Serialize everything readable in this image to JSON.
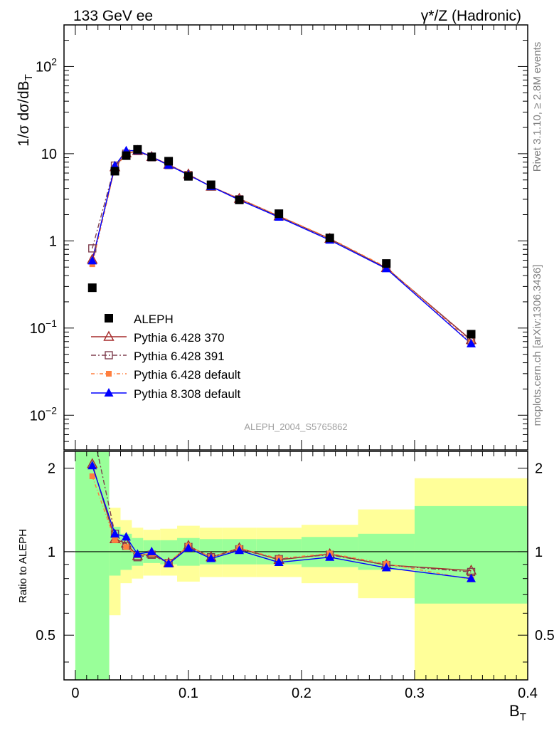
{
  "header": {
    "left": "133 GeV ee",
    "right": "γ*/Z (Hadronic)"
  },
  "side": {
    "rivet": "Rivet 3.1.10, ≥ 2.8M events",
    "mcplots": "mcplots.cern.ch [arXiv:1306.3436]"
  },
  "watermark": "ALEPH_2004_S5765862",
  "axes": {
    "xlabel": "B",
    "xlabel_sub": "T",
    "ylabel_main": "1/σ  dσ/dB",
    "ylabel_main_sub": "T",
    "ylabel_ratio": "Ratio to ALEPH"
  },
  "chart_data": [
    {
      "type": "scatter",
      "panel": "main",
      "yscale": "log",
      "xlim": [
        -0.01,
        0.4
      ],
      "ylim": [
        0.004,
        300
      ],
      "yticks": [
        {
          "v": 0.01,
          "base": "10",
          "exp": "−2"
        },
        {
          "v": 0.1,
          "base": "10",
          "exp": "−1"
        },
        {
          "v": 1,
          "base": "1",
          "exp": ""
        },
        {
          "v": 10,
          "base": "10",
          "exp": ""
        },
        {
          "v": 100,
          "base": "10",
          "exp": "2"
        }
      ],
      "legend_position": "bottom-left",
      "series": [
        {
          "name": "ALEPH",
          "style": "data",
          "color": "#000000",
          "x": [
            0.015,
            0.035,
            0.045,
            0.055,
            0.0675,
            0.0825,
            0.1,
            0.12,
            0.145,
            0.18,
            0.225,
            0.275,
            0.35
          ],
          "y": [
            0.29,
            6.3,
            9.5,
            11.2,
            9.2,
            8.2,
            5.5,
            4.4,
            2.95,
            2.05,
            1.08,
            0.55,
            0.085
          ]
        },
        {
          "name": "Pythia 6.428 370",
          "style": "open-triangle",
          "color": "#a52a2a",
          "dash": "",
          "x": [
            0.015,
            0.035,
            0.045,
            0.055,
            0.0675,
            0.0825,
            0.1,
            0.12,
            0.145,
            0.18,
            0.225,
            0.275,
            0.35
          ],
          "y": [
            0.61,
            7.0,
            10.1,
            10.8,
            9.2,
            7.5,
            5.8,
            4.2,
            3.05,
            1.92,
            1.06,
            0.49,
            0.073
          ]
        },
        {
          "name": "Pythia 6.428 391",
          "style": "open-square",
          "color": "#804050",
          "dash": "7,3,2,3",
          "x": [
            0.015,
            0.035,
            0.045,
            0.055,
            0.0675,
            0.0825,
            0.1,
            0.12,
            0.145,
            0.18,
            0.225,
            0.275,
            0.35
          ],
          "y": [
            0.82,
            7.3,
            10.0,
            10.7,
            9.1,
            7.4,
            5.7,
            4.2,
            3.0,
            1.92,
            1.05,
            0.49,
            0.072
          ]
        },
        {
          "name": "Pythia 6.428 default",
          "style": "filled-square-small",
          "color": "#ff7f3f",
          "dash": "5,3,1,3",
          "x": [
            0.015,
            0.035,
            0.045,
            0.055,
            0.0675,
            0.0825,
            0.1,
            0.12,
            0.145,
            0.18,
            0.225,
            0.275,
            0.35
          ],
          "y": [
            0.54,
            6.9,
            9.8,
            10.9,
            9.3,
            7.5,
            5.8,
            4.2,
            3.05,
            1.94,
            1.07,
            0.5,
            0.068
          ]
        },
        {
          "name": "Pythia 8.308 default",
          "style": "filled-triangle",
          "color": "#0000ff",
          "dash": "",
          "x": [
            0.015,
            0.035,
            0.045,
            0.055,
            0.0675,
            0.0825,
            0.1,
            0.12,
            0.145,
            0.18,
            0.225,
            0.275,
            0.35
          ],
          "y": [
            0.59,
            7.3,
            10.8,
            10.9,
            9.2,
            7.4,
            5.7,
            4.2,
            2.95,
            1.87,
            1.02,
            0.48,
            0.066
          ]
        }
      ]
    },
    {
      "type": "line",
      "panel": "ratio",
      "yscale": "log",
      "xlim": [
        -0.01,
        0.4
      ],
      "ylim": [
        0.345,
        2.3
      ],
      "xticks": [
        0,
        0.1,
        0.2,
        0.3,
        0.4
      ],
      "xticklabels": [
        "0",
        "0.1",
        "0.2",
        "0.3",
        "0.4"
      ],
      "yticks": [
        0.5,
        1,
        2
      ],
      "yticklabels": [
        "0.5",
        "1",
        "2"
      ],
      "bands": [
        {
          "x0": 0.0,
          "x1": 0.03,
          "yellow": [
            0.2,
            5.0
          ],
          "green": [
            0.2,
            5.0
          ]
        },
        {
          "x0": 0.03,
          "x1": 0.04,
          "yellow": [
            0.59,
            1.44
          ],
          "green": [
            0.82,
            1.23
          ]
        },
        {
          "x0": 0.04,
          "x1": 0.05,
          "yellow": [
            0.77,
            1.3
          ],
          "green": [
            0.86,
            1.16
          ]
        },
        {
          "x0": 0.05,
          "x1": 0.06,
          "yellow": [
            0.8,
            1.22
          ],
          "green": [
            0.89,
            1.12
          ]
        },
        {
          "x0": 0.06,
          "x1": 0.075,
          "yellow": [
            0.82,
            1.2
          ],
          "green": [
            0.91,
            1.1
          ]
        },
        {
          "x0": 0.075,
          "x1": 0.09,
          "yellow": [
            0.82,
            1.21
          ],
          "green": [
            0.9,
            1.1
          ]
        },
        {
          "x0": 0.09,
          "x1": 0.11,
          "yellow": [
            0.78,
            1.24
          ],
          "green": [
            0.89,
            1.12
          ]
        },
        {
          "x0": 0.11,
          "x1": 0.13,
          "yellow": [
            0.81,
            1.22
          ],
          "green": [
            0.9,
            1.11
          ]
        },
        {
          "x0": 0.13,
          "x1": 0.16,
          "yellow": [
            0.81,
            1.22
          ],
          "green": [
            0.9,
            1.11
          ]
        },
        {
          "x0": 0.16,
          "x1": 0.2,
          "yellow": [
            0.81,
            1.22
          ],
          "green": [
            0.9,
            1.11
          ]
        },
        {
          "x0": 0.2,
          "x1": 0.25,
          "yellow": [
            0.77,
            1.25
          ],
          "green": [
            0.88,
            1.13
          ]
        },
        {
          "x0": 0.25,
          "x1": 0.3,
          "yellow": [
            0.68,
            1.42
          ],
          "green": [
            0.86,
            1.16
          ]
        },
        {
          "x0": 0.3,
          "x1": 0.4,
          "yellow": [
            0.3,
            1.84
          ],
          "green": [
            0.65,
            1.46
          ]
        }
      ],
      "series": [
        {
          "name": "Pythia 6.428 370",
          "color": "#a52a2a",
          "dash": "",
          "style": "open-triangle",
          "x": [
            0.015,
            0.035,
            0.045,
            0.055,
            0.0675,
            0.0825,
            0.1,
            0.12,
            0.145,
            0.18,
            0.225,
            0.275,
            0.35
          ],
          "y": [
            2.07,
            1.11,
            1.07,
            0.965,
            0.985,
            0.91,
            1.05,
            0.955,
            1.03,
            0.935,
            0.98,
            0.895,
            0.855
          ]
        },
        {
          "name": "Pythia 6.428 391",
          "color": "#804050",
          "dash": "7,3,2,3",
          "style": "open-square",
          "x": [
            0.015,
            0.035,
            0.045,
            0.055,
            0.0675,
            0.0825,
            0.1,
            0.12,
            0.145,
            0.18,
            0.225,
            0.275,
            0.35
          ],
          "y": [
            2.8,
            1.16,
            1.05,
            0.955,
            0.975,
            0.91,
            1.04,
            0.955,
            1.02,
            0.94,
            0.975,
            0.895,
            0.845
          ]
        },
        {
          "name": "Pythia 6.428 default",
          "color": "#ff7f3f",
          "dash": "5,3,1,3",
          "style": "filled-square-small",
          "x": [
            0.015,
            0.035,
            0.045,
            0.055,
            0.0675,
            0.0825,
            0.1,
            0.12,
            0.145,
            0.18,
            0.225,
            0.275,
            0.35
          ],
          "y": [
            1.87,
            1.1,
            1.04,
            0.97,
            0.985,
            0.915,
            1.05,
            0.955,
            1.03,
            0.945,
            0.985,
            0.905,
            0.795
          ]
        },
        {
          "name": "Pythia 8.308 default",
          "color": "#0000ff",
          "dash": "",
          "style": "filled-triangle",
          "x": [
            0.015,
            0.035,
            0.045,
            0.055,
            0.0675,
            0.0825,
            0.1,
            0.12,
            0.145,
            0.18,
            0.225,
            0.275,
            0.35
          ],
          "y": [
            2.04,
            1.16,
            1.13,
            0.98,
            1.0,
            0.905,
            1.03,
            0.945,
            1.01,
            0.915,
            0.955,
            0.875,
            0.8
          ]
        }
      ]
    }
  ]
}
